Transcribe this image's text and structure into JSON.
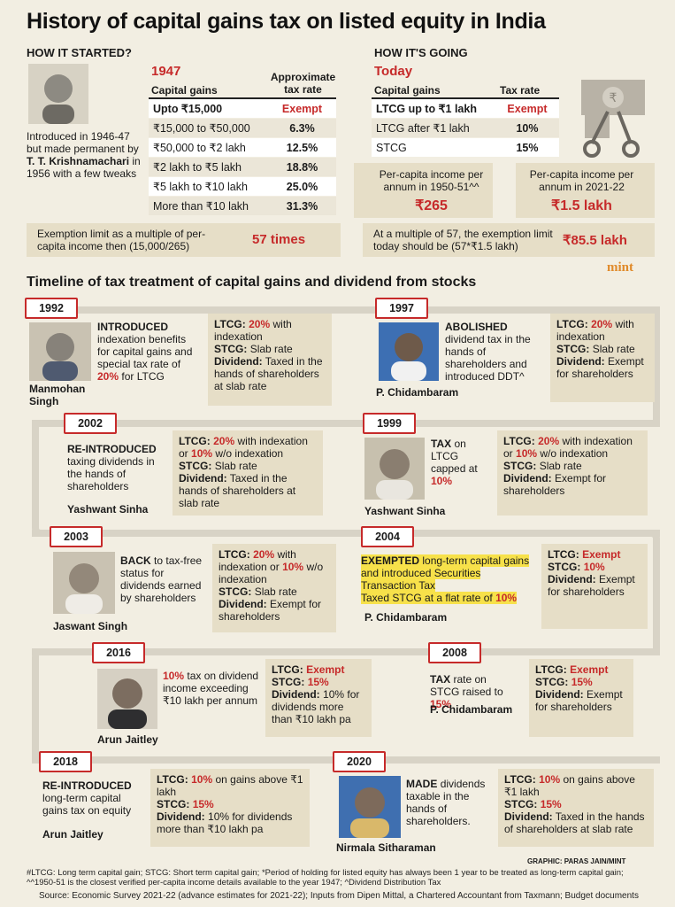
{
  "title": "History of capital gains tax on listed equity in India",
  "left": {
    "heading": "HOW IT STARTED?",
    "year": "1947",
    "col1": "Capital gains",
    "col2": "Approximate tax rate",
    "rows": [
      [
        "Upto ₹15,000",
        "Exempt"
      ],
      [
        "₹15,000 to ₹50,000",
        "6.3%"
      ],
      [
        "₹50,000 to ₹2 lakh",
        "12.5%"
      ],
      [
        "₹2 lakh to ₹5 lakh",
        "18.8%"
      ],
      [
        "₹5 lakh to ₹10 lakh",
        "25.0%"
      ],
      [
        "More than ₹10 lakh",
        "31.3%"
      ]
    ],
    "intro1": "Introduced in 1946-47 but made permanent by",
    "intro_name": "T. T. Krishnamachari",
    "intro2": "in 1956 with a few tweaks",
    "multiple_label": "Exemption limit as a multiple of per-capita income then (15,000/265)",
    "multiple_value": "57 times"
  },
  "right": {
    "heading": "HOW IT'S GOING",
    "today": "Today",
    "col1": "Capital gains",
    "col2": "Tax rate",
    "rows": [
      [
        "LTCG up to ₹1 lakh",
        "Exempt"
      ],
      [
        "LTCG after ₹1 lakh",
        "10%"
      ],
      [
        "STCG",
        "15%"
      ]
    ],
    "pci_then_label": "Per-capita income per annum in 1950-51^^",
    "pci_then_value": "₹265",
    "pci_now_label": "Per-capita income per annum in 2021-22",
    "pci_now_value": "₹1.5 lakh",
    "exempt_label": "At a multiple of 57, the exemption limit today should be (57*₹1.5 lakh)",
    "exempt_value": "₹85.5 lakh",
    "logo": "mint"
  },
  "timeline_title": "Timeline of tax treatment of capital gains and dividend from stocks",
  "events": {
    "e1992": {
      "year": "1992",
      "head": "INTRODUCED",
      "desc": "indexation benefits for capital gains and special tax rate of",
      "rate": "20%",
      "desc2": "for LTCG",
      "name": "Manmohan Singh",
      "ltcg_l": "LTCG:",
      "ltcg_v": "20%",
      "ltcg_r": "with indexation",
      "stcg_l": "STCG:",
      "stcg_v": "Slab rate",
      "div_l": "Dividend:",
      "div_v": "Taxed in the hands of shareholders at slab rate"
    },
    "e1997": {
      "year": "1997",
      "head": "ABOLISHED",
      "desc": "dividend tax in the hands of shareholders and introduced DDT^",
      "name": "P. Chidambaram",
      "ltcg_l": "LTCG:",
      "ltcg_v": "20%",
      "ltcg_r": "with indexation",
      "stcg_l": "STCG:",
      "stcg_v": "Slab rate",
      "div_l": "Dividend:",
      "div_v": "Exempt for shareholders"
    },
    "e2002": {
      "year": "2002",
      "head": "RE-INTRODUCED",
      "desc": "taxing dividends in the hands of shareholders",
      "name": "Yashwant Sinha",
      "ltcg_l": "LTCG:",
      "ltcg_v": "20%",
      "ltcg_m": "with indexation or",
      "ltcg_v2": "10%",
      "ltcg_r": "w/o indexation",
      "stcg_l": "STCG:",
      "stcg_v": "Slab rate",
      "div_l": "Dividend:",
      "div_v": "Taxed in the hands of shareholders at slab rate"
    },
    "e1999": {
      "year": "1999",
      "head": "TAX",
      "desc": "on LTCG capped at",
      "rate": "10%",
      "name": "Yashwant Sinha",
      "ltcg_l": "LTCG:",
      "ltcg_v": "20%",
      "ltcg_m": "with indexation or",
      "ltcg_v2": "10%",
      "ltcg_r": "w/o indexation",
      "stcg_l": "STCG:",
      "stcg_v": "Slab rate",
      "div_l": "Dividend:",
      "div_v": "Exempt for shareholders"
    },
    "e2003": {
      "year": "2003",
      "head": "BACK",
      "desc": "to tax-free status for dividends earned by shareholders",
      "name": "Jaswant Singh",
      "ltcg_l": "LTCG:",
      "ltcg_v": "20%",
      "ltcg_m": "with indexation or",
      "ltcg_v2": "10%",
      "ltcg_r": "w/o indexation",
      "stcg_l": "STCG:",
      "stcg_v": "Slab rate",
      "div_l": "Dividend:",
      "div_v": "Exempt for shareholders"
    },
    "e2004": {
      "year": "2004",
      "head": "EXEMPTED",
      "desc": "long-term capital gains and introduced Securities Transaction Tax",
      "desc2": "Taxed STCG at a flat rate of",
      "rate": "10%",
      "name": "P. Chidambaram",
      "ltcg_l": "LTCG:",
      "ltcg_v": "Exempt",
      "stcg_l": "STCG:",
      "stcg_v": "10%",
      "div_l": "Dividend:",
      "div_v": "Exempt for shareholders"
    },
    "e2016": {
      "year": "2016",
      "rate": "10%",
      "desc": "tax on dividend income exceeding ₹10 lakh per annum",
      "name": "Arun Jaitley",
      "ltcg_l": "LTCG:",
      "ltcg_v": "Exempt",
      "stcg_l": "STCG:",
      "stcg_v": "15%",
      "div_l": "Dividend:",
      "div_v": "10% for dividends more than ₹10 lakh pa"
    },
    "e2008": {
      "year": "2008",
      "head": "TAX",
      "desc": "rate on STCG raised to",
      "rate": "15%",
      "name": "P. Chidambaram",
      "ltcg_l": "LTCG:",
      "ltcg_v": "Exempt",
      "stcg_l": "STCG:",
      "stcg_v": "15%",
      "div_l": "Dividend:",
      "div_v": "Exempt for shareholders"
    },
    "e2018": {
      "year": "2018",
      "head": "RE-INTRODUCED",
      "desc": "long-term capital gains tax on equity",
      "name": "Arun Jaitley",
      "ltcg_l": "LTCG:",
      "ltcg_v": "10%",
      "ltcg_r": "on gains above ₹1 lakh",
      "stcg_l": "STCG:",
      "stcg_v": "15%",
      "div_l": "Dividend:",
      "div_v": "10% for dividends more than ₹10 lakh pa"
    },
    "e2020": {
      "year": "2020",
      "head": "MADE",
      "desc": "dividends taxable in the hands of shareholders.",
      "name": "Nirmala Sitharaman",
      "ltcg_l": "LTCG:",
      "ltcg_v": "10%",
      "ltcg_r": "on gains above ₹1 lakh",
      "stcg_l": "STCG:",
      "stcg_v": "15%",
      "div_l": "Dividend:",
      "div_v": "Taxed in the hands of shareholders at slab rate"
    }
  },
  "credit": "GRAPHIC: PARAS JAIN/MINT",
  "footnote": "#LTCG: Long term capital gain; STCG: Short term capital gain; *Period of holding for listed equity has always been 1 year to be treated as long-term capital gain; ^^1950-51 is the closest verified per-capita income details available to the year 1947; ^Dividend Distribution Tax",
  "source": "Source: Economic Survey 2021-22 (advance estimates for 2021-22); Inputs from Dipen Mittal, a Chartered Accountant from Taxmann; Budget documents",
  "colors": {
    "accent": "#c62a2a",
    "background": "#f2eee2",
    "box": "#e6dec7",
    "highlight": "#f7e14a"
  }
}
